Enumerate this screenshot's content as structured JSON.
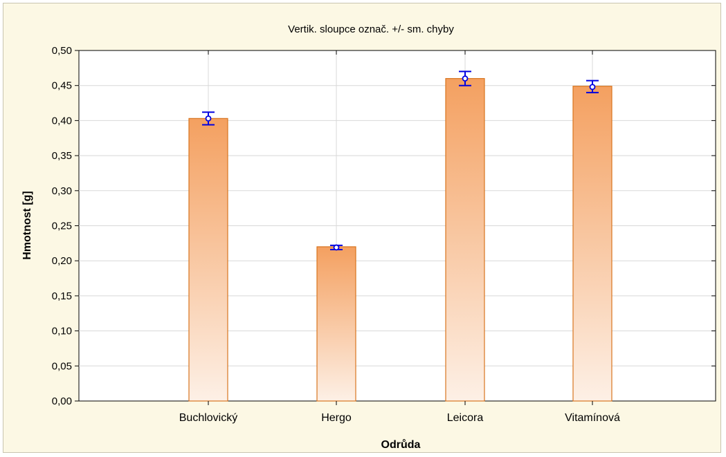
{
  "chart_data": {
    "type": "bar",
    "title": "Vertik. sloupce označ. +/- sm. chyby",
    "xlabel": "Odrůda",
    "ylabel": "Hmotnost [g]",
    "categories": [
      "Buchlovický",
      "Hergo",
      "Leicora",
      "Vitamínová"
    ],
    "values": [
      0.403,
      0.22,
      0.46,
      0.449
    ],
    "means": [
      0.403,
      0.219,
      0.46,
      0.448
    ],
    "error_low": [
      0.394,
      0.216,
      0.45,
      0.44
    ],
    "error_high": [
      0.412,
      0.222,
      0.47,
      0.457
    ],
    "ylim": [
      0,
      0.5
    ],
    "yticks": [
      0.0,
      0.05,
      0.1,
      0.15,
      0.2,
      0.25,
      0.3,
      0.35,
      0.4,
      0.45,
      0.5
    ],
    "ytick_labels": [
      "0,00",
      "0,05",
      "0,10",
      "0,15",
      "0,20",
      "0,25",
      "0,30",
      "0,35",
      "0,40",
      "0,45",
      "0,50"
    ],
    "grid": true,
    "colors": {
      "bar_top": "#f4a060",
      "bar_bottom": "#fdf0e6",
      "bar_edge": "#d8741e",
      "error": "#0000e0",
      "background": "#fcf8e4",
      "plot_background": "#ffffff",
      "grid": "#d8d8d8"
    }
  }
}
